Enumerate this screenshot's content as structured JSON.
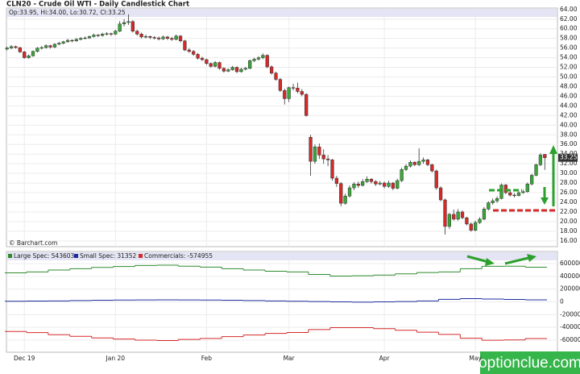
{
  "site": "optionclue.com",
  "chart_data": [
    {
      "type": "candlestick",
      "title": "CLN20 - Crude Oil WTI - Daily Candlestick Chart",
      "info": "Op:33.95, Hi:34.00, Lo:30.72, Cl:33.25",
      "source": "© Barchart.com",
      "up_color": "#3aa63a",
      "down_color": "#d42a2a",
      "grid": true,
      "ylim": [
        14.8,
        64.3
      ],
      "yticks": [
        {
          "value": 64,
          "label": "64.00"
        },
        {
          "value": 62,
          "label": "62.00"
        },
        {
          "value": 60,
          "label": "60.00"
        },
        {
          "value": 58,
          "label": "58.00"
        },
        {
          "value": 56,
          "label": "56.00"
        },
        {
          "value": 54,
          "label": "54.00"
        },
        {
          "value": 52,
          "label": "52.00"
        },
        {
          "value": 50,
          "label": "50.00"
        },
        {
          "value": 48,
          "label": "48.00"
        },
        {
          "value": 46,
          "label": "46.00"
        },
        {
          "value": 44,
          "label": "44.00"
        },
        {
          "value": 42,
          "label": "42.00"
        },
        {
          "value": 40,
          "label": "40.00"
        },
        {
          "value": 38,
          "label": "38.00"
        },
        {
          "value": 36,
          "label": "36.00"
        },
        {
          "value": 34,
          "label": "34.00"
        },
        {
          "value": 32,
          "label": "32.00"
        },
        {
          "value": 30,
          "label": "30.00"
        },
        {
          "value": 28,
          "label": "28.00"
        },
        {
          "value": 26,
          "label": "26.00"
        },
        {
          "value": 24,
          "label": "24.00"
        },
        {
          "value": 22,
          "label": "22.00"
        },
        {
          "value": 20,
          "label": "20.00"
        },
        {
          "value": 18,
          "label": "18.00"
        },
        {
          "value": 16,
          "label": "16.00"
        }
      ],
      "categories": [
        null,
        null,
        null,
        null,
        "Dec 19",
        null,
        null,
        null,
        null,
        null,
        null,
        null,
        null,
        null,
        null,
        null,
        null,
        null,
        null,
        null,
        null,
        null,
        null,
        null,
        null,
        "Jan 20",
        null,
        null,
        null,
        null,
        null,
        null,
        null,
        null,
        null,
        null,
        null,
        null,
        null,
        null,
        null,
        null,
        null,
        null,
        null,
        null,
        "Feb",
        null,
        null,
        null,
        null,
        null,
        null,
        null,
        null,
        null,
        null,
        null,
        null,
        null,
        null,
        null,
        null,
        null,
        null,
        "Mar",
        null,
        null,
        null,
        null,
        null,
        null,
        null,
        null,
        null,
        null,
        null,
        null,
        null,
        null,
        null,
        null,
        null,
        null,
        null,
        null,
        null,
        "Apr",
        null,
        null,
        null,
        null,
        null,
        null,
        null,
        null,
        null,
        null,
        null,
        null,
        null,
        null,
        null,
        null,
        null,
        null,
        null,
        null,
        "May",
        null,
        null,
        null,
        null,
        null,
        null,
        null,
        null,
        null,
        null,
        null,
        null,
        null,
        null,
        null,
        null
      ],
      "candles": [
        [
          55.8,
          56.3,
          55.5,
          56.0
        ],
        [
          56.0,
          56.6,
          55.8,
          56.3
        ],
        [
          56.3,
          56.5,
          55.9,
          56.1
        ],
        [
          56.1,
          56.2,
          55.0,
          55.2
        ],
        [
          55.2,
          55.4,
          53.8,
          54.0
        ],
        [
          54.0,
          54.7,
          53.8,
          54.4
        ],
        [
          54.4,
          55.5,
          54.2,
          55.3
        ],
        [
          55.3,
          56.2,
          55.1,
          56.0
        ],
        [
          56.0,
          56.4,
          55.7,
          56.1
        ],
        [
          56.1,
          56.8,
          55.9,
          56.5
        ],
        [
          56.5,
          56.7,
          55.9,
          56.2
        ],
        [
          56.2,
          57.0,
          56.0,
          56.8
        ],
        [
          56.8,
          57.3,
          56.6,
          57.0
        ],
        [
          57.0,
          57.5,
          56.8,
          57.3
        ],
        [
          57.3,
          57.9,
          57.1,
          57.6
        ],
        [
          57.6,
          57.8,
          57.2,
          57.5
        ],
        [
          57.5,
          58.1,
          57.3,
          57.8
        ],
        [
          57.8,
          58.3,
          57.6,
          58.0
        ],
        [
          58.0,
          58.4,
          57.8,
          58.1
        ],
        [
          58.1,
          58.6,
          57.9,
          58.4
        ],
        [
          58.4,
          59.0,
          58.2,
          58.7
        ],
        [
          58.7,
          58.9,
          58.3,
          58.6
        ],
        [
          58.6,
          59.2,
          58.4,
          58.9
        ],
        [
          58.9,
          59.3,
          58.6,
          59.0
        ],
        [
          59.0,
          59.2,
          58.5,
          58.9
        ],
        [
          58.9,
          59.8,
          58.7,
          59.5
        ],
        [
          59.5,
          61.6,
          59.3,
          61.0
        ],
        [
          61.0,
          62.0,
          60.5,
          61.3
        ],
        [
          61.3,
          63.0,
          60.8,
          61.5
        ],
        [
          61.5,
          61.8,
          59.2,
          59.5
        ],
        [
          59.5,
          59.8,
          58.6,
          58.9
        ],
        [
          58.9,
          59.2,
          58.0,
          58.3
        ],
        [
          58.3,
          58.8,
          58.0,
          58.4
        ],
        [
          58.4,
          58.6,
          57.9,
          58.2
        ],
        [
          58.2,
          58.5,
          57.8,
          58.1
        ],
        [
          58.1,
          58.4,
          57.6,
          57.9
        ],
        [
          57.9,
          58.6,
          57.7,
          58.3
        ],
        [
          58.3,
          58.5,
          57.7,
          58.0
        ],
        [
          58.0,
          58.3,
          57.5,
          57.8
        ],
        [
          57.8,
          58.8,
          57.6,
          58.5
        ],
        [
          58.5,
          58.7,
          57.2,
          57.5
        ],
        [
          57.5,
          57.7,
          55.4,
          55.6
        ],
        [
          55.6,
          56.0,
          55.0,
          55.3
        ],
        [
          55.3,
          55.6,
          54.4,
          54.7
        ],
        [
          54.7,
          55.0,
          53.6,
          53.9
        ],
        [
          53.9,
          54.2,
          53.3,
          53.6
        ],
        [
          53.6,
          53.8,
          52.5,
          52.8
        ],
        [
          52.8,
          53.0,
          51.9,
          52.2
        ],
        [
          52.2,
          53.3,
          52.0,
          53.0
        ],
        [
          53.0,
          53.2,
          51.5,
          51.8
        ],
        [
          51.8,
          52.0,
          50.9,
          51.2
        ],
        [
          51.2,
          51.8,
          51.0,
          51.5
        ],
        [
          51.5,
          52.3,
          51.3,
          52.0
        ],
        [
          52.0,
          52.2,
          50.8,
          51.1
        ],
        [
          51.1,
          51.9,
          50.9,
          51.6
        ],
        [
          51.6,
          52.1,
          51.4,
          51.8
        ],
        [
          51.8,
          53.6,
          51.6,
          53.4
        ],
        [
          53.4,
          54.0,
          53.1,
          53.7
        ],
        [
          53.7,
          54.3,
          53.4,
          54.0
        ],
        [
          54.0,
          54.9,
          53.7,
          54.5
        ],
        [
          54.5,
          54.7,
          51.8,
          52.1
        ],
        [
          52.1,
          52.4,
          50.5,
          50.8
        ],
        [
          50.8,
          51.1,
          49.2,
          49.5
        ],
        [
          49.5,
          49.8,
          46.9,
          47.2
        ],
        [
          47.2,
          47.6,
          44.3,
          45.5
        ],
        [
          45.5,
          48.0,
          44.8,
          47.8
        ],
        [
          47.8,
          48.6,
          47.2,
          47.7
        ],
        [
          47.7,
          48.8,
          46.6,
          47.0
        ],
        [
          47.0,
          47.5,
          46.0,
          46.4
        ],
        [
          46.4,
          46.6,
          41.8,
          42.0
        ],
        [
          37.5,
          38.0,
          29.5,
          32.5
        ],
        [
          32.5,
          36.0,
          32.0,
          35.5
        ],
        [
          35.5,
          36.2,
          33.0,
          33.8
        ],
        [
          33.8,
          35.0,
          32.0,
          33.0
        ],
        [
          33.0,
          33.8,
          31.5,
          32.8
        ],
        [
          32.8,
          33.0,
          28.5,
          29.0
        ],
        [
          29.0,
          29.5,
          27.2,
          27.9
        ],
        [
          27.9,
          28.2,
          23.2,
          23.8
        ],
        [
          23.8,
          25.8,
          23.5,
          25.3
        ],
        [
          25.3,
          27.5,
          25.0,
          27.0
        ],
        [
          27.0,
          28.2,
          26.5,
          27.8
        ],
        [
          27.8,
          28.3,
          27.0,
          27.5
        ],
        [
          27.5,
          28.8,
          27.3,
          28.3
        ],
        [
          28.3,
          29.4,
          28.0,
          28.8
        ],
        [
          28.8,
          29.0,
          27.9,
          28.3
        ],
        [
          28.3,
          28.6,
          27.4,
          27.8
        ],
        [
          27.8,
          28.4,
          27.5,
          28.0
        ],
        [
          28.0,
          28.3,
          26.9,
          27.3
        ],
        [
          27.3,
          28.5,
          27.0,
          28.0
        ],
        [
          28.0,
          28.2,
          26.5,
          26.9
        ],
        [
          26.9,
          28.9,
          26.7,
          28.5
        ],
        [
          28.5,
          31.2,
          28.2,
          30.8
        ],
        [
          30.8,
          31.9,
          30.5,
          31.5
        ],
        [
          31.5,
          32.7,
          31.2,
          32.3
        ],
        [
          32.3,
          32.5,
          31.5,
          31.8
        ],
        [
          31.8,
          35.2,
          31.5,
          32.5
        ],
        [
          32.5,
          33.3,
          32.0,
          32.8
        ],
        [
          32.8,
          33.0,
          31.5,
          31.8
        ],
        [
          31.8,
          32.0,
          30.2,
          30.5
        ],
        [
          30.5,
          30.8,
          26.6,
          27.0
        ],
        [
          27.0,
          27.3,
          24.2,
          24.5
        ],
        [
          24.5,
          24.8,
          17.3,
          19.0
        ],
        [
          19.0,
          21.8,
          18.5,
          21.5
        ],
        [
          21.5,
          22.5,
          20.2,
          20.5
        ],
        [
          20.5,
          22.6,
          20.2,
          22.0
        ],
        [
          22.0,
          22.3,
          20.5,
          20.8
        ],
        [
          20.8,
          21.0,
          19.2,
          19.5
        ],
        [
          19.5,
          19.8,
          17.9,
          18.2
        ],
        [
          18.2,
          20.2,
          18.0,
          19.8
        ],
        [
          19.8,
          20.9,
          19.5,
          20.5
        ],
        [
          20.5,
          23.0,
          20.3,
          22.6
        ],
        [
          22.6,
          24.2,
          22.3,
          23.9
        ],
        [
          23.9,
          24.8,
          23.5,
          24.3
        ],
        [
          24.3,
          25.2,
          23.9,
          24.8
        ],
        [
          24.8,
          27.9,
          24.6,
          27.6
        ],
        [
          27.6,
          27.8,
          25.7,
          26.0
        ],
        [
          26.0,
          26.3,
          25.2,
          25.5
        ],
        [
          25.5,
          25.9,
          25.0,
          25.4
        ],
        [
          25.4,
          26.3,
          25.2,
          26.0
        ],
        [
          26.0,
          26.6,
          25.8,
          26.2
        ],
        [
          26.2,
          28.1,
          26.0,
          27.8
        ],
        [
          27.8,
          29.9,
          27.5,
          29.6
        ],
        [
          29.6,
          32.0,
          29.4,
          31.8
        ],
        [
          31.8,
          34.2,
          31.5,
          33.8
        ],
        [
          33.95,
          34.0,
          30.72,
          33.25
        ]
      ]
    },
    {
      "type": "step",
      "ylim": [
        -790000,
        790000
      ],
      "yticks": [
        600000,
        400000,
        200000,
        0,
        -200000,
        -400000,
        -600000
      ],
      "series": [
        {
          "name": "Large Spec: 543603",
          "color": "#2e8b2e",
          "values": [
            455000,
            470000,
            500000,
            520000,
            540000,
            555000,
            570000,
            575000,
            560000,
            545000,
            520000,
            500000,
            480000,
            470000,
            430000,
            405000,
            410000,
            420000,
            440000,
            460000,
            470000,
            520000,
            557000,
            560000,
            543603
          ]
        },
        {
          "name": "Small Spec: 31352",
          "color": "#1c2d9c",
          "values": [
            10000,
            12000,
            15000,
            20000,
            25000,
            28000,
            30000,
            32000,
            30000,
            28000,
            25000,
            20000,
            15000,
            10000,
            5000,
            0,
            -5000,
            0,
            5000,
            15000,
            40000,
            50000,
            45000,
            38000,
            31352
          ]
        },
        {
          "name": "Commercials: -574955",
          "color": "#d42a2a",
          "values": [
            -465000,
            -482000,
            -515000,
            -540000,
            -565000,
            -583000,
            -600000,
            -607000,
            -590000,
            -573000,
            -545000,
            -520000,
            -495000,
            -480000,
            -435000,
            -405000,
            -405000,
            -420000,
            -445000,
            -475000,
            -510000,
            -570000,
            -602000,
            -598000,
            -574955
          ]
        }
      ]
    }
  ]
}
